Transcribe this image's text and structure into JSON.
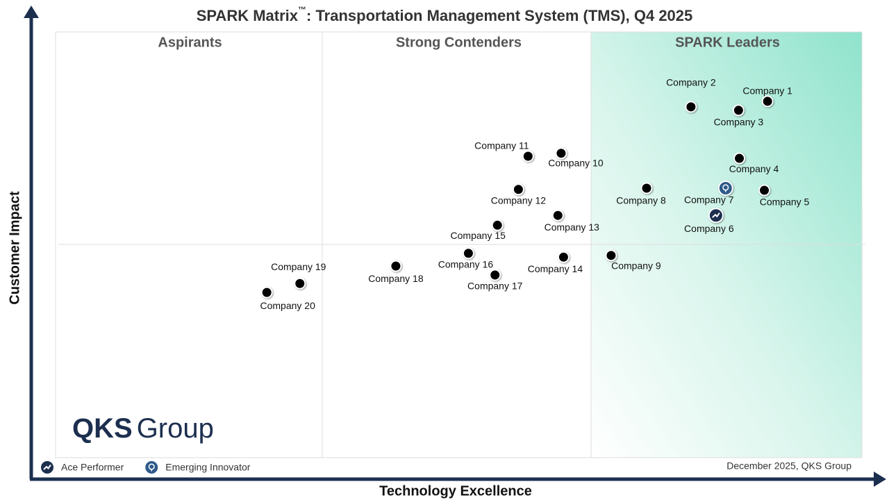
{
  "chart_data": {
    "type": "scatter",
    "title": "SPARK Matrix",
    "title_mark": "™",
    "title_rest": ": Transportation Management System (TMS), Q4 2025",
    "x_label": "Technology Excellence",
    "y_label": "Customer Impact",
    "quadrants": [
      "Aspirants",
      "Strong Contenders",
      "SPARK Leaders"
    ],
    "xlim": [
      0,
      100
    ],
    "ylim": [
      0,
      100
    ],
    "series": [
      {
        "color": "#000000",
        "labels": [
          "Company 1",
          "Company 2",
          "Company 3",
          "Company 4",
          "Company 5",
          "Company 8",
          "Company 9",
          "Company 10",
          "Company 11",
          "Company 12",
          "Company 13",
          "Company 14",
          "Company 15",
          "Company 16",
          "Company 17",
          "Company 18",
          "Company 19",
          "Company 20"
        ],
        "x": [
          88.3,
          78.8,
          84.7,
          84.8,
          87.9,
          73.3,
          68.9,
          62.7,
          58.6,
          57.4,
          62.3,
          63.0,
          54.8,
          51.2,
          54.5,
          42.2,
          30.3,
          26.2
        ],
        "y": [
          83.7,
          82.4,
          81.6,
          70.3,
          62.8,
          63.3,
          47.5,
          71.5,
          70.8,
          63.0,
          56.9,
          47.1,
          54.6,
          48.0,
          42.9,
          45.0,
          40.9,
          38.8
        ]
      },
      {
        "name": "Ace Performer",
        "color": "#1c2f4f",
        "labels": [
          "Company 6"
        ],
        "x": [
          81.9
        ],
        "y": [
          56.9
        ]
      },
      {
        "name": "Emerging Innovator",
        "color": "#2f5a8a",
        "labels": [
          "Company 7"
        ],
        "x": [
          83.1
        ],
        "y": [
          63.3
        ]
      }
    ],
    "logo": {
      "bold": "QKS",
      "light": "Group"
    },
    "footer": "December 2025, QKS Group"
  }
}
